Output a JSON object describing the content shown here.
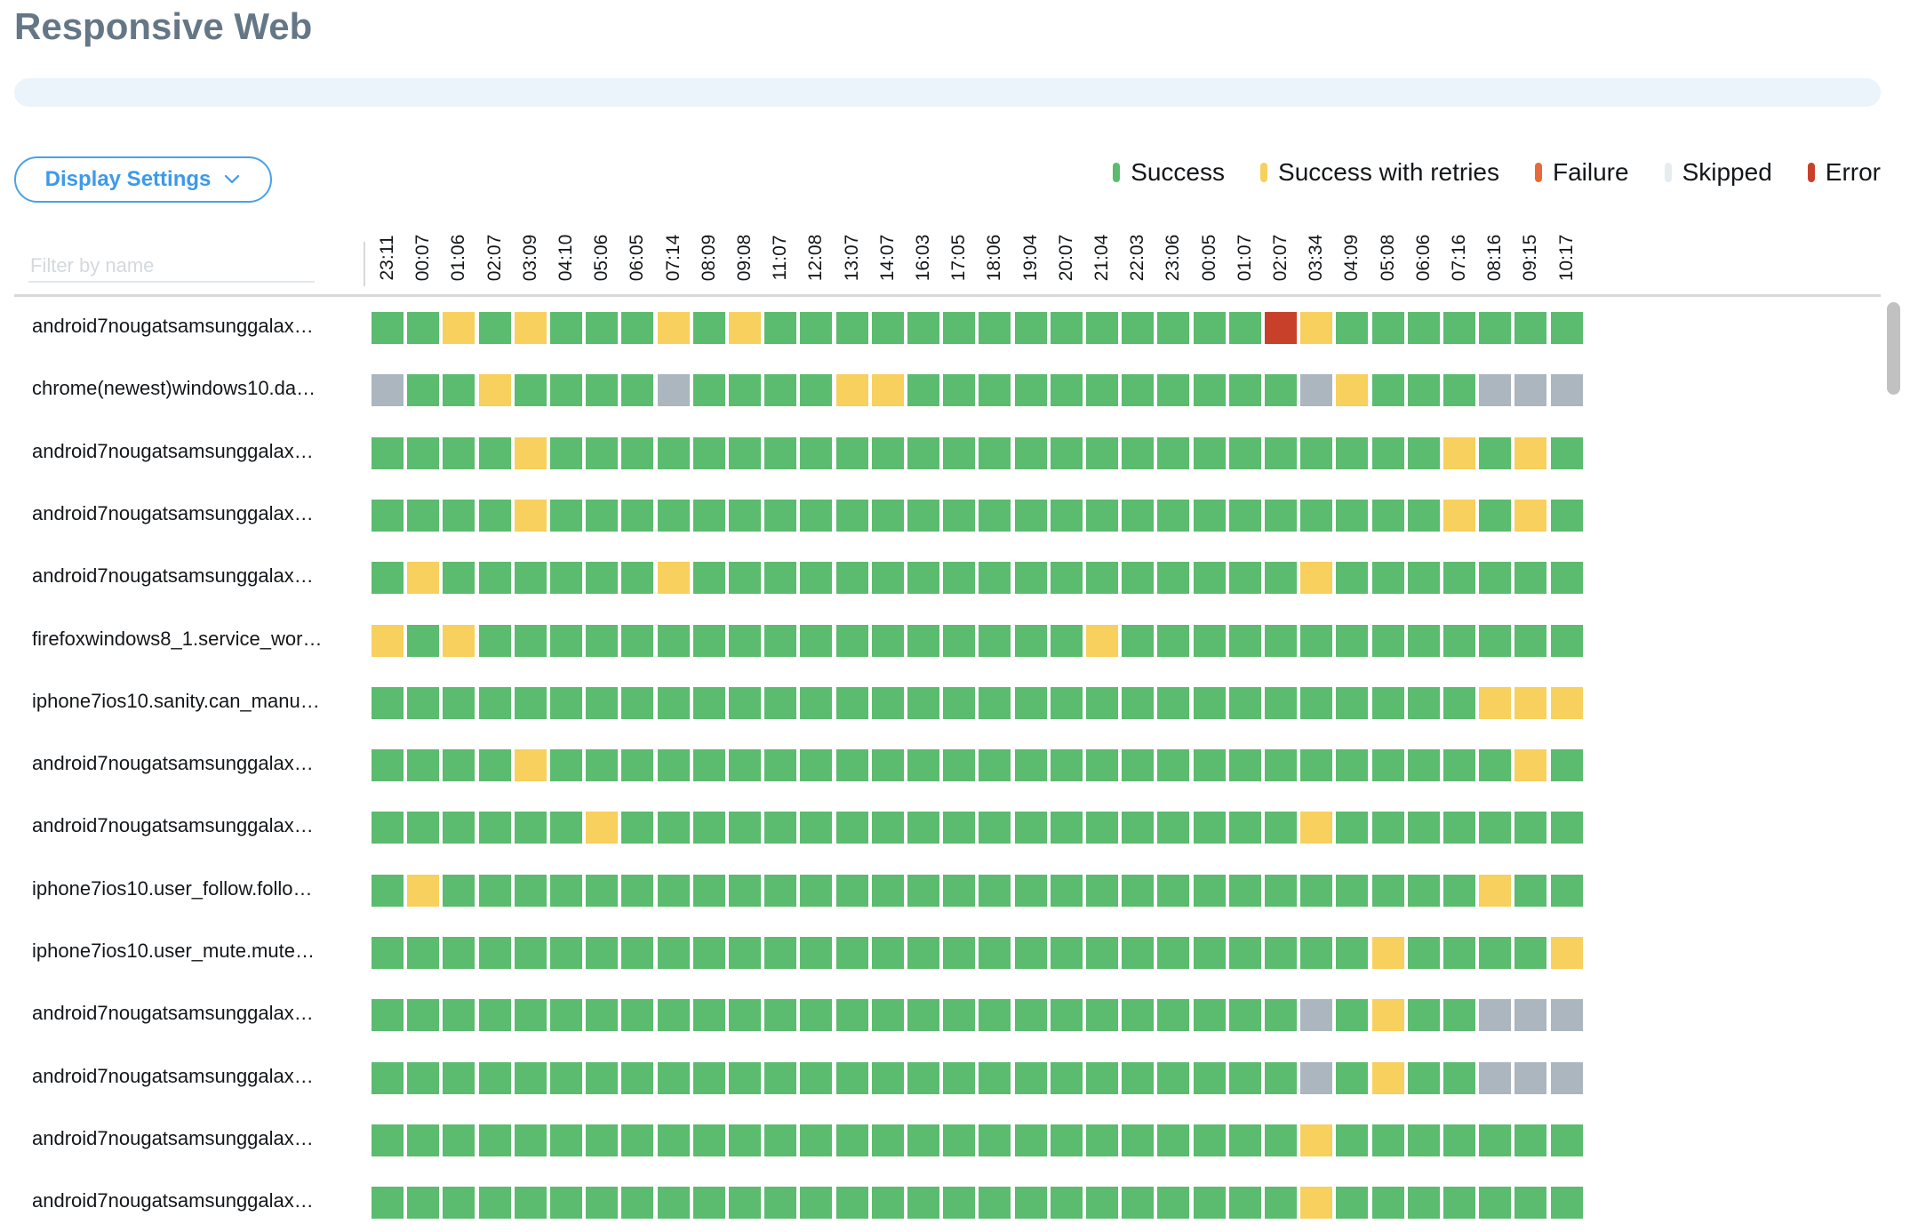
{
  "page": {
    "title": "Responsive Web"
  },
  "progress": {
    "fraction": 0
  },
  "display_settings": {
    "label": "Display Settings",
    "icon": "chevron-down-icon"
  },
  "filter": {
    "placeholder": "Filter by name",
    "value": ""
  },
  "legend": [
    {
      "key": "S",
      "label": "Success",
      "color": "#5bbb6e"
    },
    {
      "key": "R",
      "label": "Success with retries",
      "color": "#f7d05d"
    },
    {
      "key": "F",
      "label": "Failure",
      "color": "#e8693a"
    },
    {
      "key": "K",
      "label": "Skipped",
      "color": "#e6ecf0"
    },
    {
      "key": "E",
      "label": "Error",
      "color": "#c9402a"
    }
  ],
  "cell_colors": {
    "S": "#5bbb6e",
    "R": "#f7d05d",
    "F": "#e8693a",
    "K": "#abb6bf",
    "E": "#c9402a"
  },
  "status_names": {
    "S": "Success",
    "R": "Success with retries",
    "F": "Failure",
    "K": "Skipped",
    "E": "Error"
  },
  "columns": [
    "23:11",
    "00:07",
    "01:06",
    "02:07",
    "03:09",
    "04:10",
    "05:06",
    "06:05",
    "07:14",
    "08:09",
    "09:08",
    "11:07",
    "12:08",
    "13:07",
    "14:07",
    "16:03",
    "17:05",
    "18:06",
    "19:04",
    "20:07",
    "21:04",
    "22:03",
    "23:06",
    "00:05",
    "01:07",
    "02:07",
    "03:34",
    "04:09",
    "05:08",
    "06:06",
    "07:16",
    "08:16",
    "09:15",
    "10:17"
  ],
  "rows": [
    {
      "name": "android7nougatsamsunggalax…",
      "statuses": "SSRSRSSSRSRSSSSSSSSSSSSSSERSSSSSSS"
    },
    {
      "name": "chrome(newest)windows10.da…",
      "statuses": "KSSRSSSSKSSSSRRSSSSSSSSSSSKRSSSKKK"
    },
    {
      "name": "android7nougatsamsunggalax…",
      "statuses": "SSSSRSSSSSSSSSSSSSSSSSSSSSSSSSRSRS"
    },
    {
      "name": "android7nougatsamsunggalax…",
      "statuses": "SSSSRSSSSSSSSSSSSSSSSSSSSSSSSSRSRS"
    },
    {
      "name": "android7nougatsamsunggalax…",
      "statuses": "SRSSSSSSRSSSSSSSSSSSSSSSSSRSSSSSSS"
    },
    {
      "name": "firefoxwindows8_1.service_wor…",
      "statuses": "RSRSSSSSSSSSSSSSSSSSRSSSSSSSSSSSSS"
    },
    {
      "name": "iphone7ios10.sanity.can_manu…",
      "statuses": "SSSSSSSSSSSSSSSSSSSSSSSSSSSSSSSRRR"
    },
    {
      "name": "android7nougatsamsunggalax…",
      "statuses": "SSSSRSSSSSSSSSSSSSSSSSSSSSSSSSSSRS"
    },
    {
      "name": "android7nougatsamsunggalax…",
      "statuses": "SSSSSSRSSSSSSSSSSSSSSSSSSSRSSSSSSS"
    },
    {
      "name": "iphone7ios10.user_follow.follo…",
      "statuses": "SRSSSSSSSSSSSSSSSSSSSSSSSSSSSSSRSS"
    },
    {
      "name": "iphone7ios10.user_mute.mute…",
      "statuses": "SSSSSSSSSSSSSSSSSSSSSSSSSSSSRSSSSR"
    },
    {
      "name": "android7nougatsamsunggalax…",
      "statuses": "SSSSSSSSSSSSSSSSSSSSSSSSSSKSRSSKKK"
    },
    {
      "name": "android7nougatsamsunggalax…",
      "statuses": "SSSSSSSSSSSSSSSSSSSSSSSSSSKSRSSKKK"
    },
    {
      "name": "android7nougatsamsunggalax…",
      "statuses": "SSSSSSSSSSSSSSSSSSSSSSSSSSRSSSSSSS"
    },
    {
      "name": "android7nougatsamsunggalax…",
      "statuses": "SSSSSSSSSSSSSSSSSSSSSSSSSSRSSSSSSS"
    }
  ],
  "chart_data": {
    "type": "heatmap",
    "title": "Responsive Web",
    "x": [
      "23:11",
      "00:07",
      "01:06",
      "02:07",
      "03:09",
      "04:10",
      "05:06",
      "06:05",
      "07:14",
      "08:09",
      "09:08",
      "11:07",
      "12:08",
      "13:07",
      "14:07",
      "16:03",
      "17:05",
      "18:06",
      "19:04",
      "20:07",
      "21:04",
      "22:03",
      "23:06",
      "00:05",
      "01:07",
      "02:07",
      "03:34",
      "04:09",
      "05:08",
      "06:06",
      "07:16",
      "08:16",
      "09:15",
      "10:17"
    ],
    "legend": [
      "Success",
      "Success with retries",
      "Failure",
      "Skipped",
      "Error"
    ],
    "legend_position": "top-right",
    "encoding": "S=Success, R=Success with retries, F=Failure, K=Skipped, E=Error; one character per column, see rows[].statuses"
  }
}
